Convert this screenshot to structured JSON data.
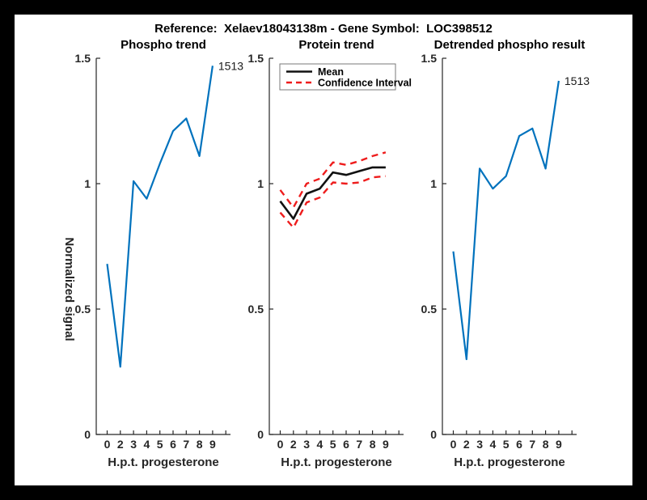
{
  "figure_title": "Reference:  Xelaev18043138m - Gene Symbol:  LOC398512",
  "colors": {
    "blue": "#0072BD",
    "red": "#ee1c1c",
    "line_black": "#111111",
    "axis": "#262626",
    "text": "#000000",
    "paper": "#ffffff",
    "frame": "#000000",
    "legend_border": "#7a7a7a"
  },
  "shared_axes": {
    "x_label": "H.p.t. progesterone",
    "x_tick_labels": [
      "0",
      "2",
      "3",
      "4",
      "5",
      "6",
      "7",
      "8",
      "9"
    ],
    "y_ticks": [
      0,
      0.5,
      1,
      1.5
    ],
    "y_tick_labels": [
      "0",
      "0.5",
      "1",
      "1.5"
    ],
    "ylim": [
      0,
      1.5
    ],
    "grid": false,
    "tick_direction": "in"
  },
  "chart_data": [
    {
      "id": "phospho-trend",
      "type": "line",
      "title": "Phospho trend",
      "xlabel": "H.p.t. progesterone",
      "ylabel": "Normalized signal",
      "x_tick_labels": [
        "0",
        "2",
        "3",
        "4",
        "5",
        "6",
        "7",
        "8",
        "9"
      ],
      "ylim": [
        0,
        1.5
      ],
      "values": [
        0.68,
        0.27,
        1.01,
        0.94,
        1.08,
        1.21,
        1.26,
        1.11,
        1.47
      ],
      "end_label": "1513",
      "color_key": "blue"
    },
    {
      "id": "protein-trend",
      "type": "line",
      "title": "Protein trend",
      "xlabel": "H.p.t. progesterone",
      "x_tick_labels": [
        "0",
        "2",
        "3",
        "4",
        "5",
        "6",
        "7",
        "8",
        "9"
      ],
      "ylim": [
        0,
        1.5
      ],
      "series": [
        {
          "name": "Mean",
          "style": "solid",
          "color_key": "line_black",
          "values": [
            0.93,
            0.86,
            0.96,
            0.98,
            1.045,
            1.035,
            1.05,
            1.065,
            1.065
          ]
        },
        {
          "name": "Confidence Interval",
          "style": "dashed",
          "color_key": "red",
          "upper": [
            0.975,
            0.905,
            1.0,
            1.02,
            1.085,
            1.075,
            1.09,
            1.11,
            1.125
          ],
          "lower": [
            0.885,
            0.825,
            0.925,
            0.945,
            1.005,
            1.0,
            1.005,
            1.025,
            1.03
          ]
        }
      ],
      "legend": {
        "position": "northwest",
        "items": [
          {
            "label": "Mean",
            "style": "solid",
            "color_key": "line_black"
          },
          {
            "label": "Confidence Interval",
            "style": "dashed",
            "color_key": "red"
          }
        ]
      }
    },
    {
      "id": "detrended-phospho",
      "type": "line",
      "title": "Detrended phospho result",
      "xlabel": "H.p.t. progesterone",
      "x_tick_labels": [
        "0",
        "2",
        "3",
        "4",
        "5",
        "6",
        "7",
        "8",
        "9"
      ],
      "ylim": [
        0,
        1.5
      ],
      "values": [
        0.73,
        0.3,
        1.06,
        0.98,
        1.03,
        1.19,
        1.22,
        1.06,
        1.41
      ],
      "end_label": "1513",
      "color_key": "blue"
    }
  ]
}
